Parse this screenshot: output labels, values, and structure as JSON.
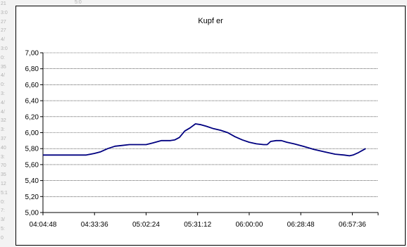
{
  "sheet": {
    "left_cells": [
      "21",
      "3:0",
      "27",
      "27",
      "4/",
      "3:0",
      "0:",
      "35",
      "4/",
      "0:",
      "3:",
      "4/",
      "4/",
      "32",
      "3:",
      "37",
      "40",
      "3:",
      "70",
      "35",
      "12",
      "5:1",
      "0:",
      "7:",
      "3/",
      "5:",
      "0"
    ],
    "top_cells": [
      "5:0"
    ]
  },
  "chart_data": {
    "type": "line",
    "title": "Kupf er",
    "xlabel": "",
    "ylabel": "",
    "ylim": [
      5.0,
      7.0
    ],
    "yticks": [
      "5,00",
      "5,20",
      "5,40",
      "5,60",
      "5,80",
      "6,00",
      "6,20",
      "6,40",
      "6,60",
      "6,80",
      "7,00"
    ],
    "xlim": [
      "04:04:48",
      "07:12:00"
    ],
    "xticks": [
      "04:04:48",
      "04:33:36",
      "05:02:24",
      "05:31:12",
      "06:00:00",
      "06:28:48",
      "06:57:36"
    ],
    "grid": "horizontal dotted",
    "series": [
      {
        "color": "#000080",
        "x": [
          "04:04:48",
          "04:10:00",
          "04:20:00",
          "04:29:00",
          "04:33:36",
          "04:37:00",
          "04:41:00",
          "04:45:00",
          "04:49:00",
          "04:53:00",
          "05:02:24",
          "05:06:00",
          "05:11:00",
          "05:16:00",
          "05:18:30",
          "05:21:00",
          "05:24:00",
          "05:27:00",
          "05:30:00",
          "05:33:00",
          "05:36:00",
          "05:40:00",
          "05:44:00",
          "05:48:00",
          "05:52:00",
          "05:56:00",
          "06:00:00",
          "06:04:00",
          "06:08:00",
          "06:10:00",
          "06:12:00",
          "06:15:00",
          "06:18:00",
          "06:21:00",
          "06:25:00",
          "06:30:00",
          "06:36:00",
          "06:42:00",
          "06:48:00",
          "06:53:00",
          "06:56:00",
          "06:58:00",
          "07:01:00",
          "07:05:00"
        ],
        "y": [
          5.72,
          5.72,
          5.72,
          5.72,
          5.74,
          5.76,
          5.8,
          5.83,
          5.84,
          5.85,
          5.85,
          5.87,
          5.9,
          5.9,
          5.91,
          5.94,
          6.02,
          6.06,
          6.11,
          6.1,
          6.08,
          6.05,
          6.03,
          6.0,
          5.95,
          5.91,
          5.88,
          5.86,
          5.85,
          5.85,
          5.89,
          5.9,
          5.9,
          5.88,
          5.86,
          5.83,
          5.79,
          5.76,
          5.73,
          5.72,
          5.71,
          5.72,
          5.75,
          5.8
        ]
      }
    ]
  }
}
